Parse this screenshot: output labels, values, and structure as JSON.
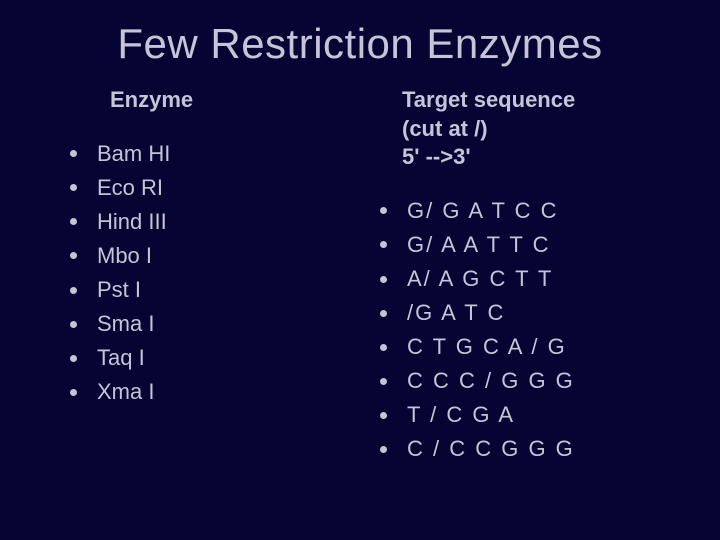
{
  "title": "Few Restriction Enzymes",
  "background_color": "#060432",
  "text_color": "#c5c4d8",
  "title_fontsize": 42,
  "body_fontsize": 22,
  "left": {
    "header": "Enzyme",
    "items": [
      "Bam HI",
      "Eco RI",
      "Hind III",
      "Mbo I",
      "Pst I",
      "Sma I",
      "Taq I",
      "Xma I"
    ]
  },
  "right": {
    "header_line1": "Target sequence",
    "header_line2": "(cut at /)",
    "header_line3": "5' -->3'",
    "items": [
      "G/ G A T C C",
      "G/ A A T T C",
      "A/ A G C T T",
      "/G A T C",
      "C T G C A / G",
      "C C C / G G G",
      "T / C G A",
      "C / C C G G G"
    ]
  }
}
